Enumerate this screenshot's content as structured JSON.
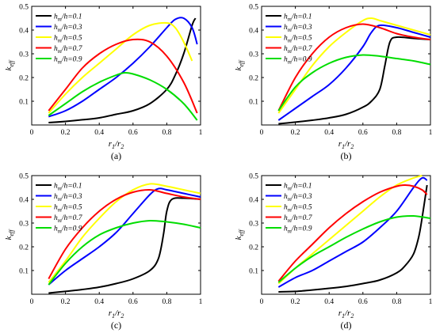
{
  "chart_data": [
    {
      "type": "line",
      "panel_label": "(a)",
      "xlabel": "r1/r2",
      "ylabel": "k_eff",
      "xlim": [
        0,
        1
      ],
      "ylim": [
        0,
        0.5
      ],
      "xticks": [
        "0",
        "0.2",
        "0.4",
        "0.6",
        "0.8",
        "1"
      ],
      "yticks": [
        "0.1",
        "0.2",
        "0.3",
        "0.4",
        "0.5"
      ],
      "legend_position": "top-left",
      "grid": false,
      "series": [
        {
          "name": "hm/h=0.1",
          "color": "#000000",
          "x": [
            0.1,
            0.2,
            0.3,
            0.4,
            0.5,
            0.6,
            0.7,
            0.8,
            0.85,
            0.9,
            0.95,
            0.97
          ],
          "y": [
            0.01,
            0.015,
            0.022,
            0.03,
            0.045,
            0.06,
            0.09,
            0.15,
            0.21,
            0.3,
            0.42,
            0.45
          ]
        },
        {
          "name": "hm/h=0.3",
          "color": "#0000ff",
          "x": [
            0.1,
            0.2,
            0.3,
            0.4,
            0.5,
            0.6,
            0.7,
            0.8,
            0.85,
            0.9,
            0.95,
            0.98
          ],
          "y": [
            0.035,
            0.06,
            0.1,
            0.15,
            0.2,
            0.26,
            0.33,
            0.41,
            0.445,
            0.45,
            0.41,
            0.34
          ]
        },
        {
          "name": "hm/h=0.5",
          "color": "#ffff00",
          "x": [
            0.1,
            0.2,
            0.3,
            0.4,
            0.5,
            0.6,
            0.7,
            0.8,
            0.85,
            0.9,
            0.95
          ],
          "y": [
            0.05,
            0.13,
            0.2,
            0.26,
            0.32,
            0.38,
            0.42,
            0.43,
            0.41,
            0.35,
            0.27
          ]
        },
        {
          "name": "hm/h=0.7",
          "color": "#ff0000",
          "x": [
            0.1,
            0.2,
            0.3,
            0.4,
            0.5,
            0.6,
            0.7,
            0.8,
            0.9,
            0.98
          ],
          "y": [
            0.06,
            0.15,
            0.24,
            0.3,
            0.34,
            0.36,
            0.35,
            0.29,
            0.18,
            0.05
          ]
        },
        {
          "name": "hm/h=0.9",
          "color": "#00dd00",
          "x": [
            0.1,
            0.2,
            0.3,
            0.4,
            0.5,
            0.55,
            0.6,
            0.7,
            0.8,
            0.9,
            0.98
          ],
          "y": [
            0.04,
            0.09,
            0.14,
            0.18,
            0.21,
            0.22,
            0.215,
            0.19,
            0.15,
            0.09,
            0.02
          ]
        }
      ]
    },
    {
      "type": "line",
      "panel_label": "(b)",
      "xlabel": "r1/r2",
      "ylabel": "k_eff",
      "xlim": [
        0,
        1
      ],
      "ylim": [
        0,
        0.5
      ],
      "xticks": [
        "0",
        "0.2",
        "0.4",
        "0.6",
        "0.8",
        "1"
      ],
      "yticks": [
        "0.1",
        "0.2",
        "0.3",
        "0.4",
        "0.5"
      ],
      "legend_position": "top-left",
      "grid": false,
      "series": [
        {
          "name": "hm/h=0.1",
          "color": "#000000",
          "x": [
            0.1,
            0.2,
            0.3,
            0.4,
            0.5,
            0.6,
            0.65,
            0.7,
            0.73,
            0.76,
            0.8,
            0.9,
            1.0
          ],
          "y": [
            0.005,
            0.012,
            0.02,
            0.03,
            0.045,
            0.075,
            0.1,
            0.15,
            0.25,
            0.35,
            0.37,
            0.365,
            0.36
          ]
        },
        {
          "name": "hm/h=0.3",
          "color": "#0000ff",
          "x": [
            0.1,
            0.2,
            0.3,
            0.4,
            0.5,
            0.6,
            0.65,
            0.7,
            0.8,
            0.9,
            1.0
          ],
          "y": [
            0.02,
            0.07,
            0.12,
            0.17,
            0.24,
            0.33,
            0.39,
            0.42,
            0.41,
            0.39,
            0.37
          ]
        },
        {
          "name": "hm/h=0.5",
          "color": "#ffff00",
          "x": [
            0.1,
            0.2,
            0.3,
            0.4,
            0.5,
            0.6,
            0.65,
            0.7,
            0.8,
            0.9,
            1.0
          ],
          "y": [
            0.05,
            0.15,
            0.25,
            0.33,
            0.39,
            0.44,
            0.45,
            0.44,
            0.42,
            0.4,
            0.38
          ]
        },
        {
          "name": "hm/h=0.7",
          "color": "#ff0000",
          "x": [
            0.1,
            0.2,
            0.3,
            0.4,
            0.5,
            0.6,
            0.7,
            0.8,
            0.9,
            1.0
          ],
          "y": [
            0.06,
            0.2,
            0.3,
            0.37,
            0.41,
            0.425,
            0.41,
            0.385,
            0.37,
            0.36
          ]
        },
        {
          "name": "hm/h=0.9",
          "color": "#00dd00",
          "x": [
            0.1,
            0.2,
            0.3,
            0.4,
            0.5,
            0.6,
            0.7,
            0.8,
            0.9,
            1.0
          ],
          "y": [
            0.06,
            0.16,
            0.22,
            0.26,
            0.285,
            0.295,
            0.29,
            0.28,
            0.27,
            0.255
          ]
        }
      ]
    },
    {
      "type": "line",
      "panel_label": "(c)",
      "xlabel": "r1/r2",
      "ylabel": "k_eff",
      "xlim": [
        0,
        1
      ],
      "ylim": [
        0,
        0.5
      ],
      "xticks": [
        "0",
        "0.2",
        "0.4",
        "0.6",
        "0.8",
        "1"
      ],
      "yticks": [
        "0.1",
        "0.2",
        "0.3",
        "0.4",
        "0.5"
      ],
      "legend_position": "top-left",
      "grid": false,
      "series": [
        {
          "name": "hm/h=0.1",
          "color": "#000000",
          "x": [
            0.1,
            0.2,
            0.3,
            0.4,
            0.5,
            0.6,
            0.7,
            0.75,
            0.78,
            0.8,
            0.83,
            0.9,
            1.0
          ],
          "y": [
            0.005,
            0.012,
            0.02,
            0.03,
            0.045,
            0.065,
            0.1,
            0.15,
            0.25,
            0.35,
            0.4,
            0.405,
            0.4
          ]
        },
        {
          "name": "hm/h=0.3",
          "color": "#0000ff",
          "x": [
            0.1,
            0.2,
            0.3,
            0.4,
            0.5,
            0.6,
            0.7,
            0.75,
            0.8,
            0.9,
            1.0
          ],
          "y": [
            0.04,
            0.1,
            0.15,
            0.2,
            0.26,
            0.34,
            0.42,
            0.445,
            0.44,
            0.425,
            0.41
          ]
        },
        {
          "name": "hm/h=0.5",
          "color": "#ffff00",
          "x": [
            0.1,
            0.2,
            0.3,
            0.4,
            0.5,
            0.6,
            0.7,
            0.8,
            0.9,
            1.0
          ],
          "y": [
            0.05,
            0.14,
            0.24,
            0.32,
            0.39,
            0.44,
            0.465,
            0.455,
            0.44,
            0.425
          ]
        },
        {
          "name": "hm/h=0.7",
          "color": "#ff0000",
          "x": [
            0.1,
            0.2,
            0.3,
            0.4,
            0.5,
            0.6,
            0.7,
            0.8,
            0.9,
            1.0
          ],
          "y": [
            0.065,
            0.19,
            0.28,
            0.35,
            0.4,
            0.43,
            0.44,
            0.425,
            0.41,
            0.4
          ]
        },
        {
          "name": "hm/h=0.9",
          "color": "#00dd00",
          "x": [
            0.1,
            0.2,
            0.3,
            0.4,
            0.5,
            0.6,
            0.7,
            0.8,
            0.9,
            1.0
          ],
          "y": [
            0.04,
            0.13,
            0.2,
            0.25,
            0.28,
            0.3,
            0.31,
            0.305,
            0.295,
            0.28
          ]
        }
      ]
    },
    {
      "type": "line",
      "panel_label": "(d)",
      "xlabel": "r1/r2",
      "ylabel": "k_eff",
      "xlim": [
        0,
        1
      ],
      "ylim": [
        0,
        0.5
      ],
      "xticks": [
        "0",
        "0.2",
        "0.4",
        "0.6",
        "0.8",
        "1"
      ],
      "yticks": [
        "0.1",
        "0.2",
        "0.3",
        "0.4",
        "0.5"
      ],
      "legend_position": "top-left",
      "grid": false,
      "series": [
        {
          "name": "hm/h=0.1",
          "color": "#000000",
          "x": [
            0.1,
            0.2,
            0.3,
            0.4,
            0.5,
            0.6,
            0.7,
            0.8,
            0.85,
            0.9,
            0.93,
            0.95,
            0.98
          ],
          "y": [
            0.01,
            0.012,
            0.018,
            0.025,
            0.033,
            0.045,
            0.06,
            0.09,
            0.12,
            0.17,
            0.24,
            0.32,
            0.46
          ]
        },
        {
          "name": "hm/h=0.3",
          "color": "#0000ff",
          "x": [
            0.1,
            0.2,
            0.3,
            0.4,
            0.5,
            0.6,
            0.7,
            0.8,
            0.9,
            0.95,
            0.98
          ],
          "y": [
            0.03,
            0.07,
            0.1,
            0.14,
            0.18,
            0.22,
            0.28,
            0.35,
            0.45,
            0.49,
            0.48
          ]
        },
        {
          "name": "hm/h=0.5",
          "color": "#ffff00",
          "x": [
            0.1,
            0.2,
            0.3,
            0.4,
            0.5,
            0.6,
            0.7,
            0.8,
            0.9,
            0.95
          ],
          "y": [
            0.045,
            0.11,
            0.17,
            0.23,
            0.29,
            0.35,
            0.41,
            0.46,
            0.49,
            0.5
          ]
        },
        {
          "name": "hm/h=0.7",
          "color": "#ff0000",
          "x": [
            0.1,
            0.2,
            0.3,
            0.4,
            0.5,
            0.6,
            0.7,
            0.8,
            0.85,
            0.9,
            0.95,
            0.98
          ],
          "y": [
            0.055,
            0.14,
            0.21,
            0.28,
            0.34,
            0.39,
            0.43,
            0.455,
            0.46,
            0.455,
            0.44,
            0.42
          ]
        },
        {
          "name": "hm/h=0.9",
          "color": "#00dd00",
          "x": [
            0.1,
            0.2,
            0.3,
            0.4,
            0.5,
            0.6,
            0.7,
            0.8,
            0.9,
            1.0
          ],
          "y": [
            0.05,
            0.11,
            0.16,
            0.2,
            0.24,
            0.275,
            0.305,
            0.325,
            0.33,
            0.32
          ]
        }
      ]
    }
  ]
}
